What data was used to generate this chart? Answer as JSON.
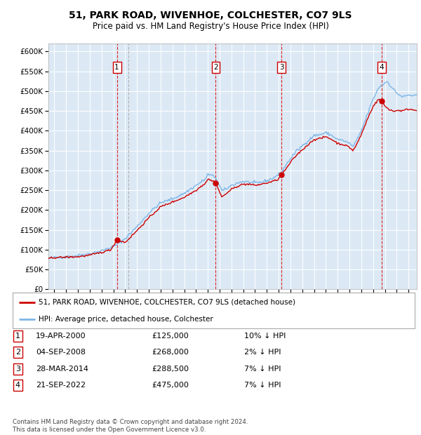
{
  "title": "51, PARK ROAD, WIVENHOE, COLCHESTER, CO7 9LS",
  "subtitle": "Price paid vs. HM Land Registry's House Price Index (HPI)",
  "title_fontsize": 10,
  "subtitle_fontsize": 8.5,
  "background_color": "#dce9f5",
  "grid_color": "#ffffff",
  "hpi_color": "#7eb6e8",
  "price_color": "#cc0000",
  "sales": [
    {
      "num": 1,
      "date_x": 2000.3,
      "price": 125000,
      "label": "1",
      "vline_x": 2000.3
    },
    {
      "num": 2,
      "date_x": 2008.67,
      "price": 268000,
      "label": "2",
      "vline_x": 2008.67
    },
    {
      "num": 3,
      "date_x": 2014.24,
      "price": 288500,
      "label": "3",
      "vline_x": 2014.24
    },
    {
      "num": 4,
      "date_x": 2022.72,
      "price": 475000,
      "label": "4",
      "vline_x": 2022.72
    }
  ],
  "grey_vline_x": 2001.25,
  "ylim": [
    0,
    620000
  ],
  "xlim_start": 1994.5,
  "xlim_end": 2025.7,
  "yticks": [
    0,
    50000,
    100000,
    150000,
    200000,
    250000,
    300000,
    350000,
    400000,
    450000,
    500000,
    550000,
    600000
  ],
  "xticks": [
    1995,
    1996,
    1997,
    1998,
    1999,
    2000,
    2001,
    2002,
    2003,
    2004,
    2005,
    2006,
    2007,
    2008,
    2009,
    2010,
    2011,
    2012,
    2013,
    2014,
    2015,
    2016,
    2017,
    2018,
    2019,
    2020,
    2021,
    2022,
    2023,
    2024,
    2025
  ],
  "legend_entries": [
    "51, PARK ROAD, WIVENHOE, COLCHESTER, CO7 9LS (detached house)",
    "HPI: Average price, detached house, Colchester"
  ],
  "table_rows": [
    {
      "num": "1",
      "date": "19-APR-2000",
      "price": "£125,000",
      "hpi": "10% ↓ HPI"
    },
    {
      "num": "2",
      "date": "04-SEP-2008",
      "price": "£268,000",
      "hpi": "2% ↓ HPI"
    },
    {
      "num": "3",
      "date": "28-MAR-2014",
      "price": "£288,500",
      "hpi": "7% ↓ HPI"
    },
    {
      "num": "4",
      "date": "21-SEP-2022",
      "price": "£475,000",
      "hpi": "7% ↓ HPI"
    }
  ],
  "footer": "Contains HM Land Registry data © Crown copyright and database right 2024.\nThis data is licensed under the Open Government Licence v3.0."
}
